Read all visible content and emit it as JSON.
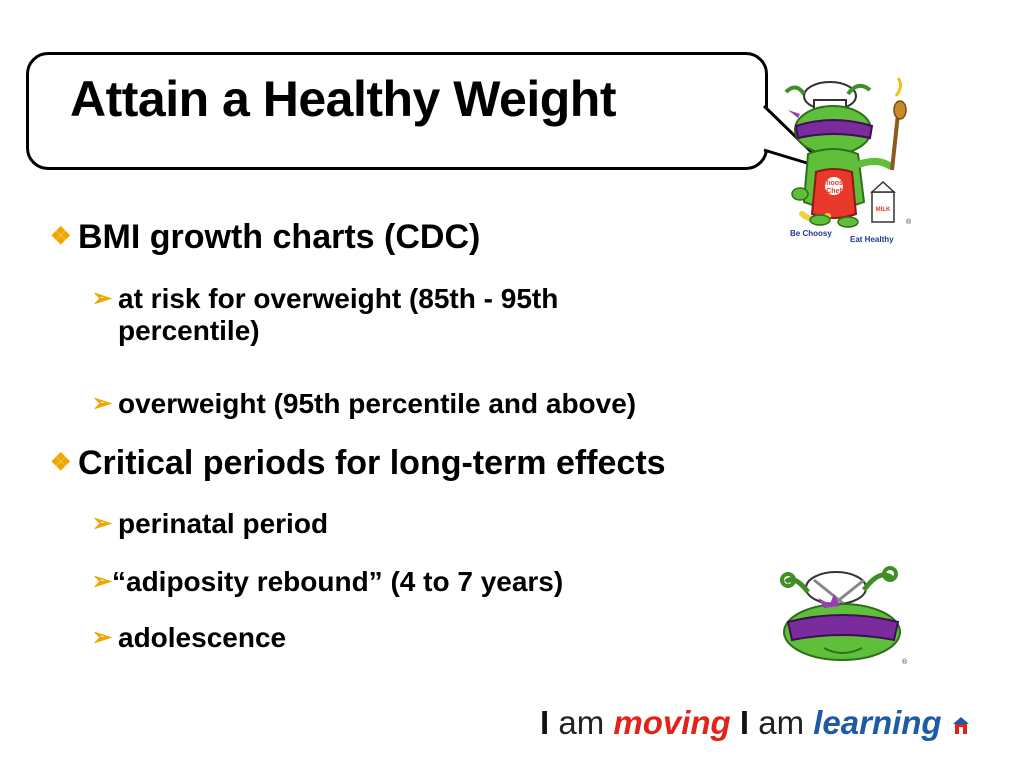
{
  "slide": {
    "title": "Attain a Healthy Weight"
  },
  "bullets": [
    {
      "text": "BMI growth charts (CDC)",
      "subs": [
        {
          "line1": "at risk for overweight (85th - 95th",
          "line2": "percentile)"
        },
        {
          "line1": "overweight (95th percentile and above)"
        }
      ]
    },
    {
      "text": "Critical periods for long-term effects",
      "subs": [
        {
          "line1": "perinatal period"
        },
        {
          "line1": "“adiposity rebound” (4 to 7 years)"
        },
        {
          "line1": "adolescence"
        }
      ]
    }
  ],
  "mascot": {
    "apron_line1": "Choosy",
    "apron_line2": "Chef",
    "tagline_left": "Be Choosy",
    "tagline_right": "Eat Healthy",
    "milk": "MILK",
    "registered": "®"
  },
  "footer": {
    "i1": "I",
    "am1": "am",
    "moving": "moving",
    "i2": "I",
    "am2": "am",
    "learning": "learning"
  },
  "colors": {
    "bullet_marker": "#f0a500",
    "moving": "#e2231a",
    "learning": "#1f5aa8",
    "mascot_green": "#5fbf3a",
    "mascot_purple": "#7b2c9c",
    "apron_red": "#e8392c"
  },
  "icons": {
    "level1_marker": "diamond-cluster-icon",
    "level2_marker": "arrowhead-icon"
  }
}
